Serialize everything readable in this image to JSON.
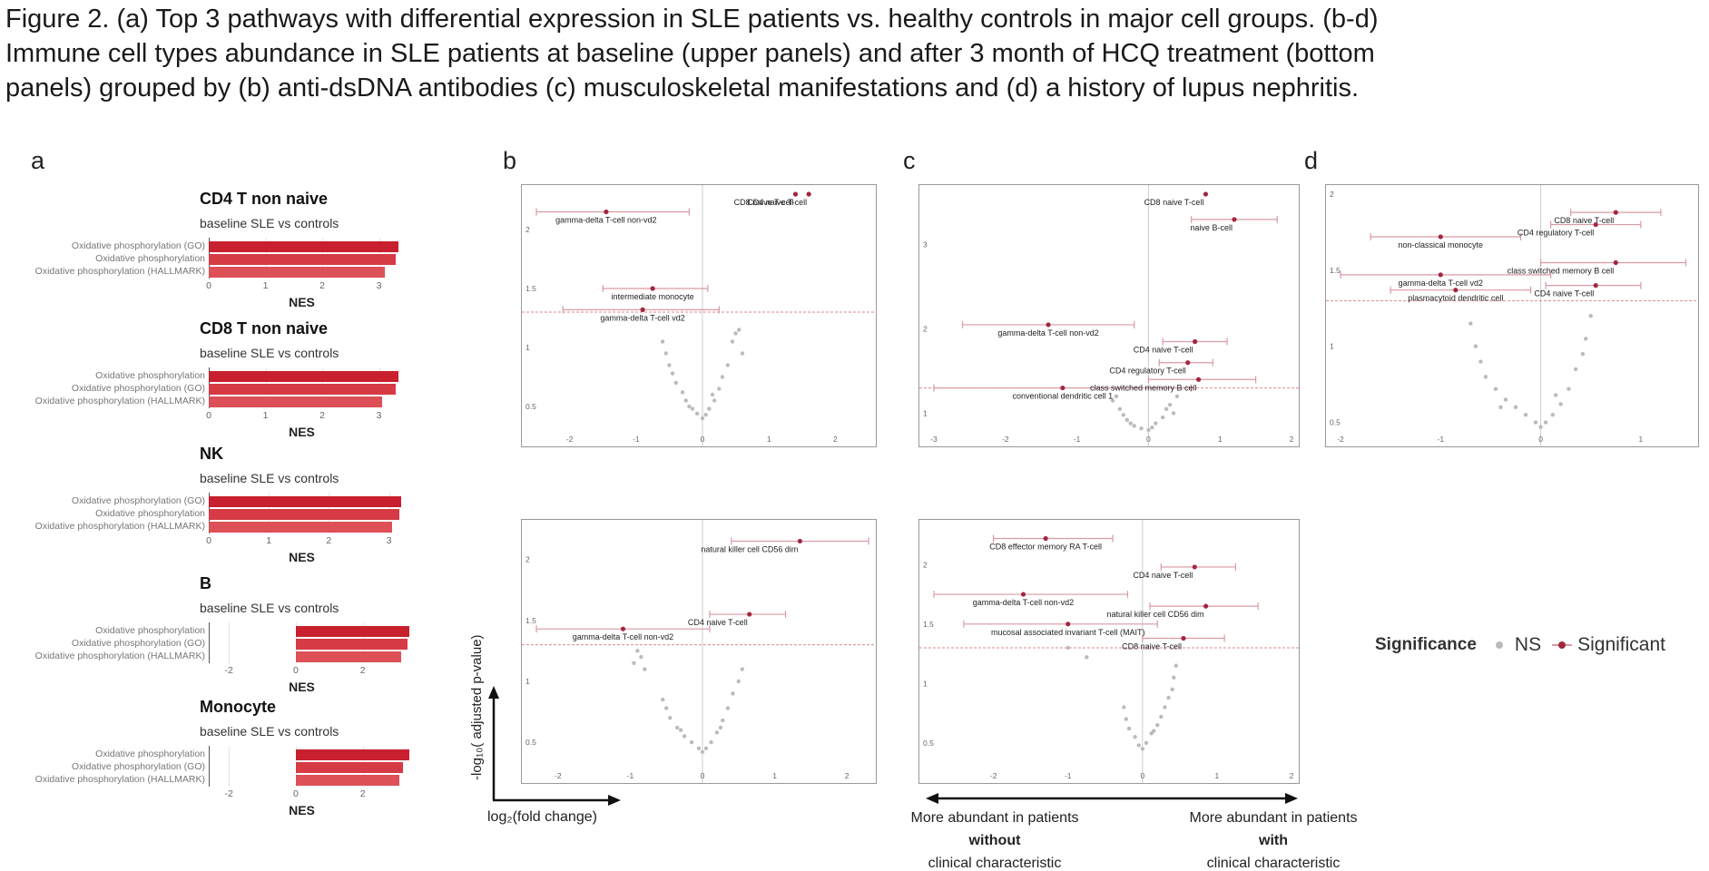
{
  "caption": {
    "line1": "Figure 2. (a) Top 3 pathways with differential expression in SLE patients vs. healthy controls in major cell groups. (b-d)",
    "line2": "Immune cell types abundance in SLE patients at baseline (upper panels) and after 3 month of HCQ treatment (bottom",
    "line3": "panels) grouped by (b) anti-dsDNA antibodies (c) musculoskeletal manifestations and (d) a history of lupus nephritis."
  },
  "panel_letters": {
    "a": "a",
    "b": "b",
    "c": "c",
    "d": "d"
  },
  "colors": {
    "bar_dark": "#c8202e",
    "bar_mid": "#d63a45",
    "bar_light": "#dd5058",
    "significant": "#a3263f",
    "ns": "#bbbbbb",
    "errorbar": "#d99aa3",
    "threshold": "#d88"
  },
  "panel_a": {
    "xlabel": "NES",
    "blocks": [
      {
        "title": "CD4 T non naive",
        "subtitle": "baseline SLE vs controls",
        "pathways": [
          "Oxidative phosphorylation (GO)",
          "Oxidative phosphorylation",
          "Oxidative phosphorylation (HALLMARK)"
        ],
        "nes": [
          3.35,
          3.3,
          3.1
        ],
        "ticks": [
          0,
          1,
          2,
          3
        ],
        "xlim": [
          0,
          3.6
        ]
      },
      {
        "title": "CD8 T non naive",
        "subtitle": "baseline SLE vs controls",
        "pathways": [
          "Oxidative phosphorylation",
          "Oxidative phosphorylation (GO)",
          "Oxidative phosphorylation (HALLMARK)"
        ],
        "nes": [
          3.35,
          3.3,
          3.05
        ],
        "ticks": [
          0,
          1,
          2,
          3
        ],
        "xlim": [
          0,
          3.6
        ]
      },
      {
        "title": "NK",
        "subtitle": "baseline SLE vs controls",
        "pathways": [
          "Oxidative phosphorylation (GO)",
          "Oxidative phosphorylation",
          "Oxidative phosphorylation (HALLMARK)"
        ],
        "nes": [
          3.2,
          3.18,
          3.05
        ],
        "ticks": [
          0,
          1,
          2,
          3
        ],
        "xlim": [
          0,
          3.4
        ]
      },
      {
        "title": "B",
        "subtitle": "baseline SLE vs controls",
        "pathways": [
          "Oxidative phosphorylation",
          "Oxidative phosphorylation (GO)",
          "Oxidative phosphorylation (HALLMARK)"
        ],
        "nes": [
          3.4,
          3.35,
          3.15
        ],
        "ticks": [
          -2,
          0,
          2
        ],
        "xlim": [
          -2.6,
          3.5
        ]
      },
      {
        "title": "Monocyte",
        "subtitle": "baseline SLE vs controls",
        "pathways": [
          "Oxidative phosphorylation",
          "Oxidative phosphorylation (GO)",
          "Oxidative phosphorylation (HALLMARK)"
        ],
        "nes": [
          3.4,
          3.2,
          3.1
        ],
        "ticks": [
          -2,
          0,
          2
        ],
        "xlim": [
          -2.6,
          3.5
        ]
      }
    ]
  },
  "chart_data": [
    {
      "type": "scatter",
      "panel": "b-top",
      "xlim": [
        -2.5,
        2.5
      ],
      "ylim": [
        0.3,
        2.3
      ],
      "xticks": [
        -2,
        -1,
        0,
        1,
        2
      ],
      "yticks": [
        0.5,
        1.0,
        1.5,
        2.0
      ],
      "threshold": 1.3,
      "significant": [
        {
          "label": "gamma-delta T-cell non-vd2",
          "x": -1.45,
          "y": 2.15,
          "lo": -2.5,
          "hi": -0.2
        },
        {
          "label": "CD8 naive T-cell",
          "x": 1.4,
          "y": 2.3
        },
        {
          "label": "CD4 naive T-cell",
          "x": 1.6,
          "y": 2.3
        },
        {
          "label": "intermediate monocyte",
          "x": -0.75,
          "y": 1.5,
          "lo": -1.5,
          "hi": 0.08
        },
        {
          "label": "gamma-delta T-cell vd2",
          "x": -0.9,
          "y": 1.32,
          "lo": -2.1,
          "hi": 0.25
        }
      ],
      "ns": [
        [
          -0.6,
          1.05
        ],
        [
          -0.55,
          0.95
        ],
        [
          -0.5,
          0.85
        ],
        [
          -0.45,
          0.78
        ],
        [
          -0.4,
          0.7
        ],
        [
          -0.3,
          0.62
        ],
        [
          -0.25,
          0.55
        ],
        [
          -0.15,
          0.48
        ],
        [
          -0.08,
          0.44
        ],
        [
          0.0,
          0.4
        ],
        [
          0.05,
          0.43
        ],
        [
          0.1,
          0.48
        ],
        [
          0.18,
          0.55
        ],
        [
          0.25,
          0.65
        ],
        [
          0.3,
          0.75
        ],
        [
          0.38,
          0.85
        ],
        [
          0.45,
          1.05
        ],
        [
          0.5,
          1.12
        ],
        [
          0.55,
          1.15
        ],
        [
          0.6,
          0.95
        ],
        [
          -0.2,
          0.5
        ],
        [
          0.15,
          0.6
        ]
      ]
    },
    {
      "type": "scatter",
      "panel": "c-top",
      "xlim": [
        -3.0,
        2.0
      ],
      "ylim": [
        0.8,
        3.6
      ],
      "xticks": [
        -3,
        -2,
        -1,
        0,
        1,
        2
      ],
      "yticks": [
        1,
        2,
        3
      ],
      "threshold": 1.3,
      "significant": [
        {
          "label": "CD8 naive T-cell",
          "x": 0.8,
          "y": 3.6
        },
        {
          "label": "naive B-cell",
          "x": 1.2,
          "y": 3.3,
          "lo": 0.6,
          "hi": 1.8
        },
        {
          "label": "gamma-delta T-cell non-vd2",
          "x": -1.4,
          "y": 2.05,
          "lo": -2.6,
          "hi": -0.2
        },
        {
          "label": "CD4 naive T-cell",
          "x": 0.65,
          "y": 1.85,
          "lo": 0.2,
          "hi": 1.1
        },
        {
          "label": "CD4 regulatory T-cell",
          "x": 0.55,
          "y": 1.6,
          "lo": 0.15,
          "hi": 0.9
        },
        {
          "label": "conventional dendritic cell 1",
          "x": -1.2,
          "y": 1.3,
          "lo": -3.0,
          "hi": 0.6
        },
        {
          "label": "class switched memory B cell",
          "x": 0.7,
          "y": 1.4,
          "lo": 0.0,
          "hi": 1.5
        }
      ],
      "ns": [
        [
          -0.5,
          1.15
        ],
        [
          -0.4,
          1.05
        ],
        [
          -0.35,
          0.98
        ],
        [
          -0.3,
          0.92
        ],
        [
          -0.25,
          0.88
        ],
        [
          -0.2,
          0.85
        ],
        [
          -0.1,
          0.82
        ],
        [
          0.0,
          0.8
        ],
        [
          0.05,
          0.83
        ],
        [
          0.1,
          0.88
        ],
        [
          0.2,
          0.95
        ],
        [
          0.25,
          1.05
        ],
        [
          0.3,
          1.1
        ],
        [
          0.4,
          1.2
        ],
        [
          -0.45,
          1.2
        ],
        [
          0.35,
          1.0
        ]
      ]
    },
    {
      "type": "scatter",
      "panel": "d-top",
      "xlim": [
        -2.0,
        1.5
      ],
      "ylim": [
        0.45,
        2.0
      ],
      "xticks": [
        -2,
        -1,
        0,
        1
      ],
      "yticks": [
        0.5,
        1.0,
        1.5,
        2.0
      ],
      "threshold": 1.3,
      "significant": [
        {
          "label": "CD8 naive T-cell",
          "x": 0.75,
          "y": 1.88,
          "lo": 0.3,
          "hi": 1.2
        },
        {
          "label": "non-classical monocyte",
          "x": -1.0,
          "y": 1.72,
          "lo": -1.7,
          "hi": -0.2
        },
        {
          "label": "CD4 regulatory T-cell",
          "x": 0.55,
          "y": 1.8,
          "lo": 0.1,
          "hi": 1.0
        },
        {
          "label": "class switched memory B cell",
          "x": 0.75,
          "y": 1.55,
          "lo": 0.0,
          "hi": 1.45
        },
        {
          "label": "gamma-delta T-cell vd2",
          "x": -1.0,
          "y": 1.47,
          "lo": -2.1,
          "hi": 0.1
        },
        {
          "label": "plasmacytoid dendritic cell",
          "x": -0.85,
          "y": 1.37,
          "lo": -1.5,
          "hi": -0.1
        },
        {
          "label": "CD4 naive T-cell",
          "x": 0.55,
          "y": 1.4,
          "lo": 0.05,
          "hi": 1.0
        }
      ],
      "ns": [
        [
          -0.7,
          1.15
        ],
        [
          -0.65,
          1.0
        ],
        [
          -0.6,
          0.9
        ],
        [
          -0.55,
          0.8
        ],
        [
          -0.45,
          0.72
        ],
        [
          -0.35,
          0.65
        ],
        [
          -0.25,
          0.6
        ],
        [
          -0.15,
          0.55
        ],
        [
          -0.05,
          0.5
        ],
        [
          0.0,
          0.47
        ],
        [
          0.05,
          0.5
        ],
        [
          0.12,
          0.55
        ],
        [
          0.2,
          0.62
        ],
        [
          0.28,
          0.72
        ],
        [
          0.35,
          0.85
        ],
        [
          0.42,
          0.95
        ],
        [
          0.45,
          1.05
        ],
        [
          0.5,
          1.2
        ],
        [
          -0.4,
          0.6
        ],
        [
          0.15,
          0.68
        ]
      ]
    },
    {
      "type": "scatter",
      "panel": "b-bottom",
      "xlim": [
        -2.3,
        2.3
      ],
      "ylim": [
        0.3,
        2.25
      ],
      "xticks": [
        -2,
        -1,
        0,
        1,
        2
      ],
      "yticks": [
        0.5,
        1.0,
        1.5,
        2.0
      ],
      "threshold": 1.3,
      "significant": [
        {
          "label": "natural killer cell CD56 dim",
          "x": 1.35,
          "y": 2.15,
          "lo": 0.4,
          "hi": 2.3
        },
        {
          "label": "CD4 naive T-cell",
          "x": 0.65,
          "y": 1.55,
          "lo": 0.1,
          "hi": 1.15
        },
        {
          "label": "gamma-delta T-cell non-vd2",
          "x": -1.1,
          "y": 1.43,
          "lo": -2.3,
          "hi": 0.1
        }
      ],
      "ns": [
        [
          -0.9,
          1.25
        ],
        [
          -0.85,
          1.2
        ],
        [
          -0.95,
          1.15
        ],
        [
          -0.8,
          1.1
        ],
        [
          -0.55,
          0.85
        ],
        [
          -0.5,
          0.78
        ],
        [
          -0.45,
          0.7
        ],
        [
          -0.35,
          0.62
        ],
        [
          -0.25,
          0.55
        ],
        [
          -0.15,
          0.5
        ],
        [
          -0.05,
          0.45
        ],
        [
          0.0,
          0.42
        ],
        [
          0.05,
          0.45
        ],
        [
          0.12,
          0.5
        ],
        [
          0.2,
          0.58
        ],
        [
          0.28,
          0.68
        ],
        [
          0.35,
          0.78
        ],
        [
          0.42,
          0.9
        ],
        [
          0.5,
          1.0
        ],
        [
          0.55,
          1.1
        ],
        [
          -0.3,
          0.6
        ],
        [
          0.25,
          0.62
        ]
      ]
    },
    {
      "type": "scatter",
      "panel": "c-bottom",
      "xlim": [
        -2.8,
        2.0
      ],
      "ylim": [
        0.3,
        2.3
      ],
      "xticks": [
        -2,
        -1,
        0,
        1,
        2
      ],
      "yticks": [
        0.5,
        1.0,
        1.5,
        2.0
      ],
      "threshold": 1.3,
      "significant": [
        {
          "label": "CD8 effector memory RA T-cell",
          "x": -1.3,
          "y": 2.22,
          "lo": -2.0,
          "hi": -0.4
        },
        {
          "label": "CD4 naive T-cell",
          "x": 0.7,
          "y": 1.98,
          "lo": 0.25,
          "hi": 1.25
        },
        {
          "label": "gamma-delta T-cell non-vd2",
          "x": -1.6,
          "y": 1.75,
          "lo": -2.8,
          "hi": -0.2
        },
        {
          "label": "natural killer cell CD56 dim",
          "x": 0.85,
          "y": 1.65,
          "lo": 0.1,
          "hi": 1.55
        },
        {
          "label": "mucosal associated invariant T-cell (MAIT)",
          "x": -1.0,
          "y": 1.5,
          "lo": -2.4,
          "hi": 0.2
        },
        {
          "label": "CD8 naive T-cell",
          "x": 0.55,
          "y": 1.38,
          "lo": 0.0,
          "hi": 1.1
        }
      ],
      "ns": [
        [
          -1.0,
          1.3
        ],
        [
          -0.75,
          1.22
        ],
        [
          0.45,
          1.15
        ],
        [
          0.42,
          1.05
        ],
        [
          0.4,
          0.95
        ],
        [
          0.35,
          0.88
        ],
        [
          0.3,
          0.8
        ],
        [
          0.25,
          0.72
        ],
        [
          0.2,
          0.65
        ],
        [
          0.12,
          0.58
        ],
        [
          0.05,
          0.5
        ],
        [
          0.0,
          0.45
        ],
        [
          -0.05,
          0.48
        ],
        [
          -0.1,
          0.55
        ],
        [
          -0.18,
          0.62
        ],
        [
          -0.22,
          0.7
        ],
        [
          -0.25,
          0.8
        ],
        [
          0.15,
          0.6
        ]
      ]
    }
  ],
  "legend": {
    "title": "Significance",
    "ns": "NS",
    "sig": "Significant"
  },
  "axes_annotation": {
    "ylabel": "-log₁₀( adjusted p-value)",
    "xlabel": "log₂(fold change)",
    "left_line1": "More abundant in patients",
    "left_line2": "without",
    "left_line3": "clinical characteristic",
    "right_line1": "More abundant in patients",
    "right_line2": "with",
    "right_line3": "clinical characteristic"
  }
}
